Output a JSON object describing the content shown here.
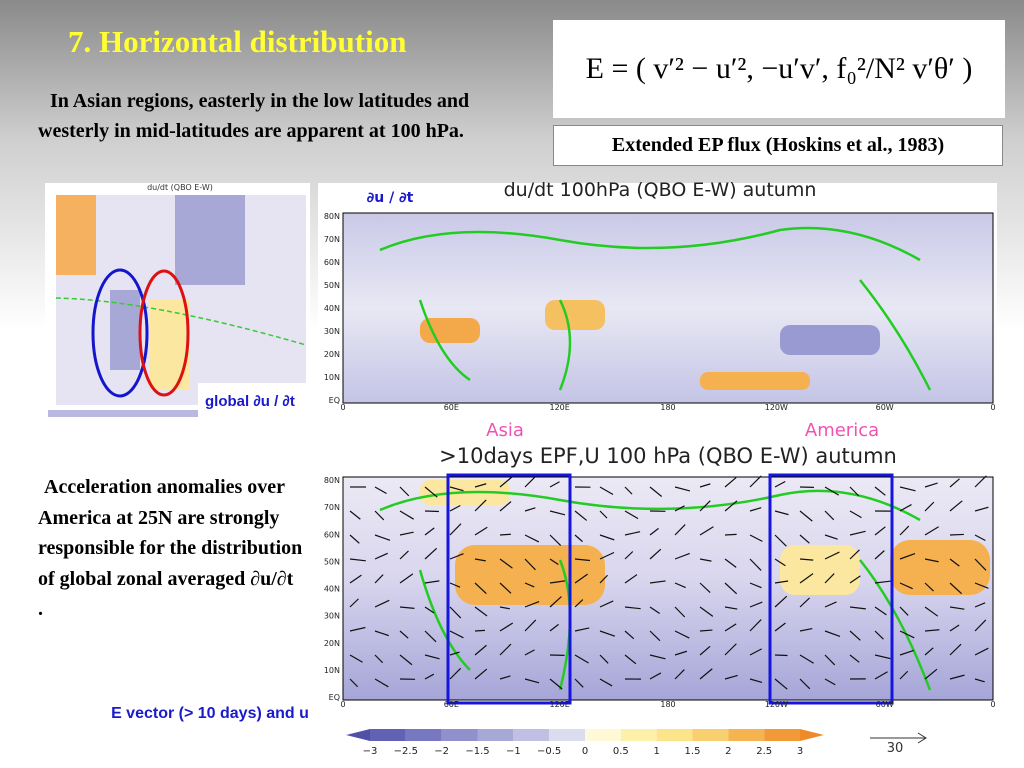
{
  "title": "7. Horizontal distribution",
  "intro": "In Asian regions, easterly in the low latitudes and westerly in mid-latitudes are apparent at 100 hPa.",
  "formula": "E = ( v′² − u′², −u′v′, f₀²/N² v′θ′ )",
  "formula_caption": "Extended EP flux (Hoskins et al., 1983)",
  "zonal_panel": {
    "title": "du/dt (QBO E-W)",
    "label": "global ∂u / ∂t"
  },
  "top_map": {
    "title": "du/dt 100hPa (QBO E-W) autumn",
    "label": "∂u / ∂t",
    "lat_labels": [
      "80N",
      "70N",
      "60N",
      "50N",
      "40N",
      "30N",
      "20N",
      "10N",
      "EQ"
    ],
    "lon_labels": [
      "0",
      "60E",
      "120E",
      "180",
      "120W",
      "60W",
      "0"
    ]
  },
  "regions": [
    "Asia",
    "America"
  ],
  "bottom_map": {
    "title": ">10days EPF,U 100 hPa (QBO E-W) autumn",
    "lat_labels": [
      "80N",
      "70N",
      "60N",
      "50N",
      "40N",
      "30N",
      "20N",
      "10N",
      "EQ"
    ],
    "lon_labels": [
      "0",
      "60E",
      "120E",
      "180",
      "120W",
      "60W",
      "0"
    ],
    "colorbar_labels": [
      "−3",
      "−2.5",
      "−2",
      "−1.5",
      "−1",
      "−0.5",
      "0",
      "0.5",
      "1",
      "1.5",
      "2",
      "2.5",
      "3"
    ],
    "reference_vector": "30"
  },
  "body": "Acceleration anomalies over America at 25N are strongly responsible for the distribution of global zonal averaged ∂u/∂t .",
  "caption": "E vector (> 10 days) and u"
}
